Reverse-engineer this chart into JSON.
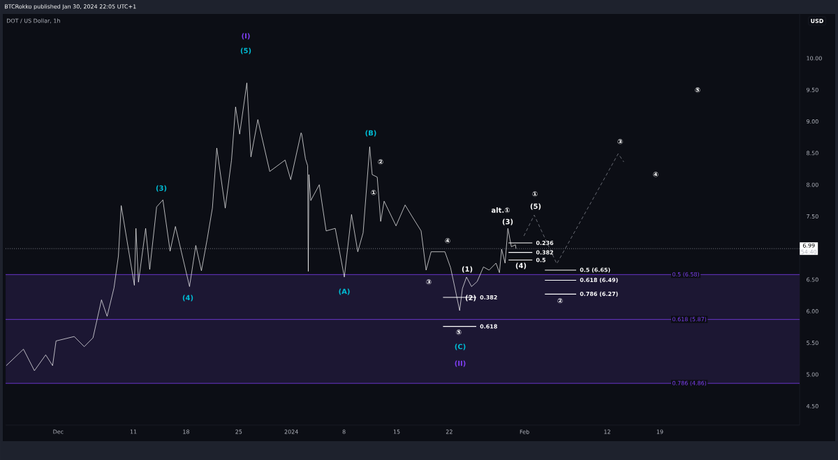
{
  "chart_data": {
    "type": "line",
    "title": "DOT / US Dollar, 1h",
    "subtitle": "BTCRokko published Jan 30, 2024 22:05 UTC+1",
    "ylabel": "USD",
    "xlim": [
      "2023-11-24T00:00",
      "2024-03-08T14:00"
    ],
    "ylim": [
      4.2,
      10.7
    ],
    "xticks": [
      {
        "value": "2023-12-01",
        "label": "Dec"
      },
      {
        "value": "2023-12-11",
        "label": "11"
      },
      {
        "value": "2023-12-18",
        "label": "18"
      },
      {
        "value": "2023-12-25",
        "label": "25"
      },
      {
        "value": "2024-01-01",
        "label": "2024"
      },
      {
        "value": "2024-01-08",
        "label": "8"
      },
      {
        "value": "2024-01-15",
        "label": "15"
      },
      {
        "value": "2024-01-22",
        "label": "22"
      },
      {
        "value": "2024-02-01",
        "label": "Feb"
      },
      {
        "value": "2024-02-12",
        "label": "12"
      },
      {
        "value": "2024-02-19",
        "label": "19"
      }
    ],
    "yticks": [
      {
        "value": 4.5,
        "label": "4.50"
      },
      {
        "value": 5.0,
        "label": "5.00"
      },
      {
        "value": 5.5,
        "label": "5.50"
      },
      {
        "value": 6.0,
        "label": "6.00"
      },
      {
        "value": 6.5,
        "label": "6.50"
      },
      {
        "value": 7.5,
        "label": "7.50"
      },
      {
        "value": 8.0,
        "label": "8.00"
      },
      {
        "value": 8.5,
        "label": "8.50"
      },
      {
        "value": 9.0,
        "label": "9.00"
      },
      {
        "value": 9.5,
        "label": "9.50"
      },
      {
        "value": 10.0,
        "label": "10.00"
      }
    ],
    "series": [
      {
        "color": "#ffffff",
        "line_style": "solid",
        "x": [
          "2023-11-24T02:00",
          "2023-11-26T09:00",
          "2023-11-27T20:00",
          "2023-11-29T08:00",
          "2023-11-30T06:00",
          "2023-11-30T17:00",
          "2023-12-03T03:00",
          "2023-12-04T11:00",
          "2023-12-05T15:00",
          "2023-12-06T18:00",
          "2023-12-07T12:00",
          "2023-12-08T10:00",
          "2023-12-09T00:00",
          "2023-12-09T09:00",
          "2023-12-11T03:00",
          "2023-12-11T08:00",
          "2023-12-11T16:00",
          "2023-12-12T15:00",
          "2023-12-13T04:00",
          "2023-12-14T02:00",
          "2023-12-14T22:00",
          "2023-12-15T21:00",
          "2023-12-16T14:00",
          "2023-12-18T11:00",
          "2023-12-19T07:00",
          "2023-12-20T01:00",
          "2023-12-20T19:00",
          "2023-12-21T12:00",
          "2023-12-22T02:00",
          "2023-12-23T05:00",
          "2023-12-24T01:00",
          "2023-12-24T14:00",
          "2023-12-25T03:00",
          "2023-12-26T02:00",
          "2023-12-26T15:00",
          "2023-12-27T13:00",
          "2023-12-29T03:00",
          "2023-12-31T04:00",
          "2023-12-31T22:00",
          "2024-01-02T07:00",
          "2024-01-02T09:00",
          "2024-01-02T21:00",
          "2024-01-03T04:00",
          "2024-01-03T06:00",
          "2024-01-03T08:00",
          "2024-01-03T14:00",
          "2024-01-04T17:00",
          "2024-01-05T15:00",
          "2024-01-06T20:00",
          "2024-01-08T01:00",
          "2024-01-09T00:00",
          "2024-01-09T20:00",
          "2024-01-10T13:00",
          "2024-01-11T10:00",
          "2024-01-11T18:00",
          "2024-01-12T10:00",
          "2024-01-12T21:00",
          "2024-01-13T08:00",
          "2024-01-14T22:00",
          "2024-01-16T03:00",
          "2024-01-17T01:00",
          "2024-01-18T06:00",
          "2024-01-18T22:00",
          "2024-01-19T14:00",
          "2024-01-21T10:00",
          "2024-01-22T04:00",
          "2024-01-22T20:00",
          "2024-01-23T09:00",
          "2024-01-23T18:00",
          "2024-01-24T07:00",
          "2024-01-24T23:00",
          "2024-01-25T17:00",
          "2024-01-26T13:00",
          "2024-01-27T07:00",
          "2024-01-28T05:00",
          "2024-01-28T16:00",
          "2024-01-28T23:00",
          "2024-01-29T10:00",
          "2024-01-29T19:00",
          "2024-01-30T06:00",
          "2024-01-30T19:00",
          "2024-01-30T21:00"
        ],
        "values": [
          5.14,
          5.4,
          5.06,
          5.31,
          5.14,
          5.53,
          5.6,
          5.44,
          5.58,
          6.18,
          5.92,
          6.37,
          6.87,
          7.67,
          6.41,
          7.31,
          6.46,
          7.31,
          6.66,
          7.65,
          7.76,
          6.95,
          7.34,
          6.39,
          7.04,
          6.64,
          7.13,
          7.63,
          8.58,
          7.63,
          8.39,
          9.23,
          8.8,
          9.61,
          8.44,
          9.03,
          8.21,
          8.39,
          8.08,
          8.82,
          8.8,
          8.41,
          8.3,
          6.63,
          8.16,
          7.75,
          8.0,
          7.27,
          7.31,
          6.54,
          7.53,
          6.94,
          7.24,
          8.6,
          8.16,
          8.12,
          7.42,
          7.74,
          7.35,
          7.68,
          7.5,
          7.27,
          6.65,
          6.94,
          6.94,
          6.69,
          6.32,
          6.01,
          6.36,
          6.54,
          6.39,
          6.47,
          6.7,
          6.65,
          6.76,
          6.61,
          6.98,
          6.76,
          7.31,
          7.02,
          7.05,
          6.99
        ]
      },
      {
        "color": "#8f929b",
        "line_style": "dashed",
        "x": [
          "2024-01-31T22:00",
          "2024-02-02T07:00",
          "2024-02-05T07:00",
          "2024-02-13T11:00",
          "2024-02-14T05:00"
        ],
        "values": [
          7.19,
          7.52,
          6.75,
          8.49,
          8.36
        ]
      },
      {
        "color": "#ffffff",
        "line_style": "solid",
        "x": [
          "2024-01-21T04:00",
          "2024-01-25T14:00"
        ],
        "values": [
          6.22,
          6.22
        ]
      },
      {
        "color": "#ffffff",
        "line_style": "solid",
        "x": [
          "2024-01-21T04:00",
          "2024-01-25T14:00"
        ],
        "values": [
          5.76,
          5.76
        ]
      },
      {
        "color": "#ffffff",
        "line_style": "solid",
        "x": [
          "2024-01-29T21:00",
          "2024-02-02T01:00"
        ],
        "values": [
          7.08,
          7.08
        ]
      },
      {
        "color": "#ffffff",
        "line_style": "solid",
        "x": [
          "2024-01-29T21:00",
          "2024-02-02T01:00"
        ],
        "values": [
          6.93,
          6.93
        ]
      },
      {
        "color": "#ffffff",
        "line_style": "solid",
        "x": [
          "2024-01-29T21:00",
          "2024-02-02T01:00"
        ],
        "values": [
          6.81,
          6.81
        ]
      },
      {
        "color": "#ffffff",
        "line_style": "solid",
        "x": [
          "2024-02-03T17:00",
          "2024-02-07T21:00"
        ],
        "values": [
          6.65,
          6.65
        ]
      },
      {
        "color": "#ffffff",
        "line_style": "solid",
        "x": [
          "2024-02-03T17:00",
          "2024-02-07T21:00"
        ],
        "values": [
          6.49,
          6.49
        ]
      },
      {
        "color": "#ffffff",
        "line_style": "solid",
        "x": [
          "2024-02-03T17:00",
          "2024-02-07T21:00"
        ],
        "values": [
          6.27,
          6.27
        ]
      }
    ],
    "bands": [
      {
        "axis": "y",
        "from": 4.86,
        "to": 6.58,
        "color": "#1c1733"
      }
    ],
    "ref_lines": [
      {
        "axis": "y",
        "value": 6.58,
        "label": "0.5 (6.58)",
        "color": "#7e3ff2",
        "line_style": "solid"
      },
      {
        "axis": "y",
        "value": 5.87,
        "label": "0.618 (5.87)",
        "color": "#7e3ff2",
        "line_style": "solid"
      },
      {
        "axis": "y",
        "value": 4.86,
        "label": "0.786 (4.86)",
        "color": "#7e3ff2",
        "line_style": "solid"
      },
      {
        "axis": "y",
        "value": 6.99,
        "label": "6.99",
        "color": "#9598a1",
        "line_style": "dotted"
      }
    ],
    "annotations": [
      "54:40",
      "(I)",
      "(5)",
      "(3)",
      "(4)",
      "(A)",
      "(B)",
      "(C)",
      "(II)",
      "①",
      "②",
      "③",
      "④",
      "⑤",
      "(1)",
      "(2)",
      "alt.①",
      "(3)",
      "(4)",
      "①",
      "(5)",
      "②",
      "③",
      "④",
      "⑤",
      {
        "text": "0.382",
        "x": "2024-01-25T14:00",
        "y": 6.22
      },
      {
        "text": "0.618",
        "x": "2024-01-25T14:00",
        "y": 5.76
      },
      {
        "text": "0.236",
        "x": "2024-02-02T01:00",
        "y": 7.08
      },
      {
        "text": "0.382",
        "x": "2024-02-02T01:00",
        "y": 6.93
      },
      {
        "text": "0.5",
        "x": "2024-02-02T01:00",
        "y": 6.81
      },
      {
        "text": "0.5 (6.65)",
        "x": "2024-02-07T21:00",
        "y": 6.65
      },
      {
        "text": "0.618 (6.49)",
        "x": "2024-02-07T21:00",
        "y": 6.49
      },
      {
        "text": "0.786 (6.27)",
        "x": "2024-02-07T21:00",
        "y": 6.27
      }
    ]
  }
}
